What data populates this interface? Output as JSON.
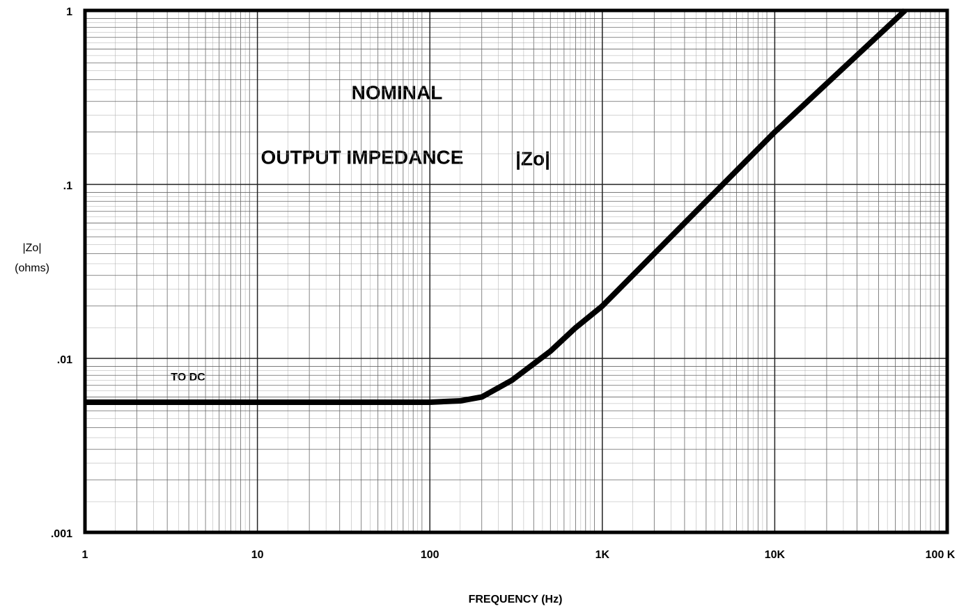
{
  "chart_data": {
    "type": "line",
    "annotations": [
      "NOMINAL",
      "OUTPUT IMPEDANCE",
      "|Zo|",
      "TO DC"
    ],
    "xlabel": "FREQUENCY (Hz)",
    "ylabel": [
      "|Zo|",
      "(ohms)"
    ],
    "xscale": "log",
    "yscale": "log",
    "grid": true,
    "xlim": [
      1,
      100000
    ],
    "xticks": [
      1,
      10,
      100,
      {
        "value": 1000,
        "label": "1K"
      },
      {
        "value": 10000,
        "label": "10K"
      },
      {
        "value": 100000,
        "label": "100 K"
      }
    ],
    "ylim": [
      0.001,
      1
    ],
    "yticks": [
      {
        "value": 0.001,
        "label": ".001"
      },
      {
        "value": 0.01,
        "label": ".01"
      },
      {
        "value": 0.1,
        "label": ".1"
      },
      1
    ],
    "x": [
      1,
      10,
      100,
      150,
      200,
      300,
      500,
      700,
      1000,
      10000,
      57000
    ],
    "series": [
      {
        "color": "#000000",
        "values": [
          0.0056,
          0.0056,
          0.0056,
          0.0057,
          0.006,
          0.0075,
          0.011,
          0.015,
          0.02,
          0.2,
          1
        ]
      }
    ]
  }
}
